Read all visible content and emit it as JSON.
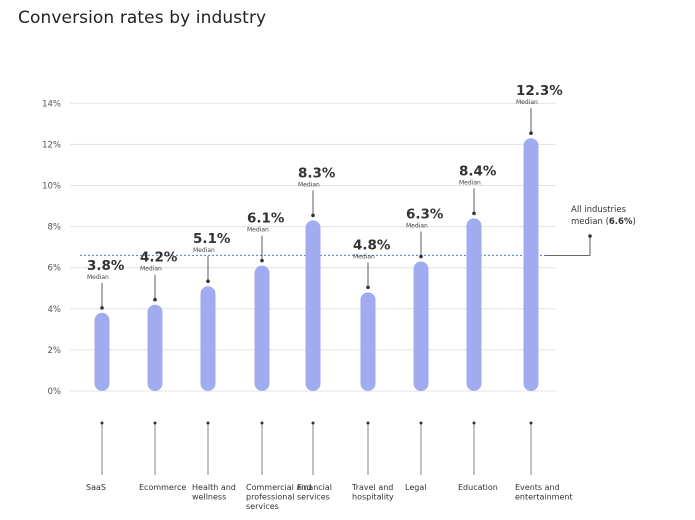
{
  "title": "Conversion rates by industry",
  "chart_data": {
    "type": "bar",
    "title": "Conversion rates by industry",
    "categories": [
      [
        "SaaS"
      ],
      [
        "Ecommerce"
      ],
      [
        "Health and",
        "wellness"
      ],
      [
        "Commercial and",
        "professional",
        "services"
      ],
      [
        "Financial",
        "services"
      ],
      [
        "Travel and",
        "hospitality"
      ],
      [
        "Legal"
      ],
      [
        "Education"
      ],
      [
        "Events and",
        "entertainment"
      ]
    ],
    "values": [
      3.8,
      4.2,
      5.1,
      6.1,
      8.3,
      4.8,
      6.3,
      8.4,
      12.3
    ],
    "value_labels": [
      "3.8%",
      "4.2%",
      "5.1%",
      "6.1%",
      "8.3%",
      "4.8%",
      "6.3%",
      "8.4%",
      "12.3%"
    ],
    "value_sublabel": "Median",
    "ylim": [
      0,
      14
    ],
    "yticks": [
      0,
      2,
      4,
      6,
      8,
      10,
      12,
      14
    ],
    "ytick_labels": [
      "0%",
      "2%",
      "4%",
      "6%",
      "8%",
      "10%",
      "12%",
      "14%"
    ],
    "reference_line": {
      "value": 6.6,
      "label_lines": [
        "All industries",
        "median ("
      ],
      "label_value": "6.6%",
      "label_suffix": ")"
    },
    "grid": true,
    "bar_color": "#a1abef",
    "reference_color": "#4a7fc9",
    "grid_color": "#e3e3e3",
    "annotation_color": "#333333"
  }
}
